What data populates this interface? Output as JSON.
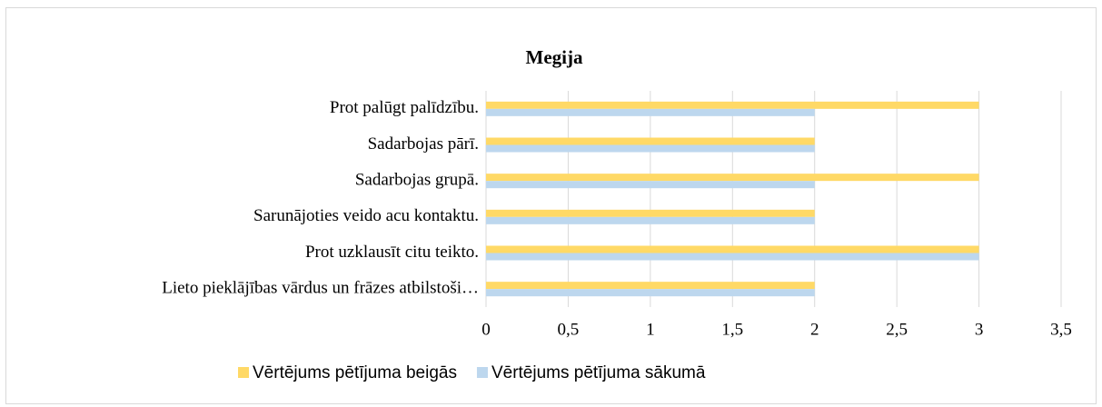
{
  "chart_data": {
    "type": "hbar",
    "title": "Megija",
    "categories": [
      "Prot palūgt palīdzību.",
      "Sadarbojas pārī.",
      "Sadarbojas grupā.",
      "Sarunājoties veido acu kontaktu.",
      "Prot uzklausīt citu teikto.",
      "Lieto pieklājības vārdus un frāzes atbilstoši…"
    ],
    "series": [
      {
        "name": "Vērtējums pētījuma beigās",
        "color": "#ffd966",
        "values": [
          3,
          2,
          3,
          2,
          3,
          2
        ]
      },
      {
        "name": "Vērtējums pētījuma sākumā",
        "color": "#bdd7ee",
        "values": [
          2,
          2,
          2,
          2,
          3,
          2
        ]
      }
    ],
    "xlim": [
      0,
      3.5
    ],
    "xticks": [
      0,
      {
        "value": 0.5,
        "label": "0,5"
      },
      1,
      {
        "value": 1.5,
        "label": "1,5"
      },
      2,
      {
        "value": 2.5,
        "label": "2,5"
      },
      3,
      {
        "value": 3.5,
        "label": "3,5"
      }
    ],
    "grid": true,
    "legend": "bottom"
  }
}
